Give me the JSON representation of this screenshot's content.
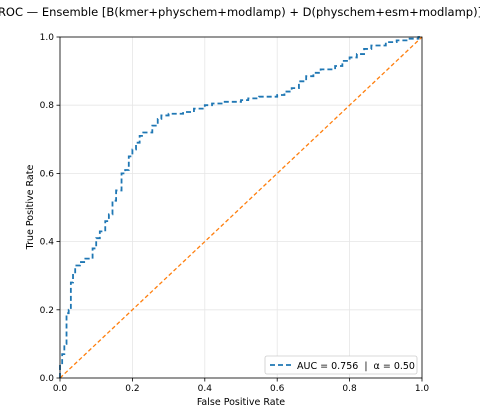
{
  "chart_data": {
    "type": "line",
    "title": "ROC — Ensemble [B(kmer+physchem+modlamp) + D(physchem+esm+modlamp)]",
    "xlabel": "False Positive Rate",
    "ylabel": "True Positive Rate",
    "xlim": [
      0.0,
      1.0
    ],
    "ylim": [
      0.0,
      1.0
    ],
    "xticks": [
      "0.0",
      "0.2",
      "0.4",
      "0.6",
      "0.8",
      "1.0"
    ],
    "yticks": [
      "0.0",
      "0.2",
      "0.4",
      "0.6",
      "0.8",
      "1.0"
    ],
    "grid": true,
    "legend_position": "lower-right",
    "series": [
      {
        "name": "AUC = 0.756  |  α = 0.50",
        "style": "dashed",
        "color": "#1f77b4",
        "x": [
          0.0,
          0.0,
          0.006,
          0.006,
          0.012,
          0.012,
          0.018,
          0.018,
          0.024,
          0.024,
          0.03,
          0.03,
          0.036,
          0.036,
          0.042,
          0.042,
          0.055,
          0.055,
          0.07,
          0.07,
          0.09,
          0.09,
          0.1,
          0.1,
          0.11,
          0.11,
          0.125,
          0.125,
          0.135,
          0.135,
          0.145,
          0.145,
          0.155,
          0.155,
          0.17,
          0.17,
          0.18,
          0.18,
          0.19,
          0.19,
          0.2,
          0.2,
          0.21,
          0.21,
          0.22,
          0.22,
          0.23,
          0.23,
          0.255,
          0.255,
          0.27,
          0.27,
          0.28,
          0.28,
          0.3,
          0.3,
          0.34,
          0.34,
          0.37,
          0.37,
          0.4,
          0.4,
          0.42,
          0.42,
          0.45,
          0.45,
          0.5,
          0.5,
          0.52,
          0.52,
          0.55,
          0.55,
          0.6,
          0.6,
          0.62,
          0.62,
          0.64,
          0.64,
          0.66,
          0.66,
          0.68,
          0.68,
          0.7,
          0.7,
          0.72,
          0.72,
          0.76,
          0.76,
          0.78,
          0.78,
          0.8,
          0.8,
          0.82,
          0.82,
          0.84,
          0.84,
          0.86,
          0.86,
          0.9,
          0.9,
          0.93,
          0.93,
          0.96,
          0.96,
          0.99,
          0.99,
          1.0
        ],
        "y": [
          0.0,
          0.04,
          0.04,
          0.07,
          0.07,
          0.1,
          0.1,
          0.19,
          0.19,
          0.2,
          0.2,
          0.28,
          0.28,
          0.31,
          0.31,
          0.33,
          0.33,
          0.34,
          0.34,
          0.35,
          0.35,
          0.38,
          0.38,
          0.41,
          0.41,
          0.43,
          0.43,
          0.46,
          0.46,
          0.48,
          0.48,
          0.52,
          0.52,
          0.55,
          0.55,
          0.6,
          0.6,
          0.61,
          0.61,
          0.65,
          0.65,
          0.67,
          0.67,
          0.69,
          0.69,
          0.71,
          0.71,
          0.72,
          0.72,
          0.74,
          0.74,
          0.76,
          0.76,
          0.77,
          0.77,
          0.775,
          0.775,
          0.78,
          0.78,
          0.79,
          0.79,
          0.8,
          0.8,
          0.805,
          0.805,
          0.81,
          0.81,
          0.815,
          0.815,
          0.82,
          0.82,
          0.825,
          0.825,
          0.83,
          0.83,
          0.84,
          0.84,
          0.85,
          0.85,
          0.87,
          0.87,
          0.885,
          0.885,
          0.895,
          0.895,
          0.905,
          0.905,
          0.915,
          0.915,
          0.93,
          0.93,
          0.94,
          0.94,
          0.95,
          0.95,
          0.965,
          0.965,
          0.975,
          0.975,
          0.985,
          0.985,
          0.99,
          0.99,
          0.995,
          0.995,
          1.0,
          1.0
        ]
      },
      {
        "name": "",
        "style": "dashed",
        "color": "#ff7f0e",
        "x": [
          0.0,
          1.0
        ],
        "y": [
          0.0,
          1.0
        ]
      }
    ]
  }
}
